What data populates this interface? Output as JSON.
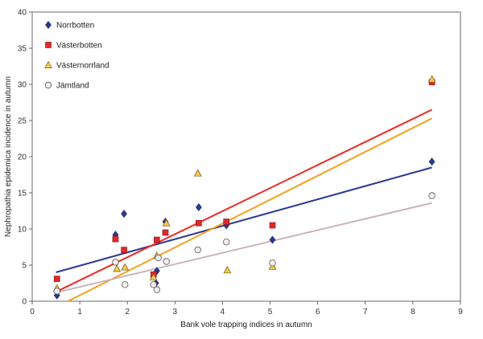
{
  "chart_data": {
    "type": "scatter",
    "xlabel": "Bank vole trapping indices in autumn",
    "ylabel": "Nephropathia epidemica incidence in autumn",
    "xlim": [
      0,
      9
    ],
    "ylim": [
      0,
      40
    ],
    "x_ticks": [
      0,
      1,
      2,
      3,
      4,
      5,
      6,
      7,
      8,
      9
    ],
    "y_ticks": [
      0,
      5,
      10,
      15,
      20,
      25,
      30,
      35,
      40
    ],
    "grid": false,
    "legend_position": "top-left",
    "series": [
      {
        "name": "Norrbotten",
        "marker": "diamond",
        "color": "#2b3990",
        "points": [
          {
            "x": 0.52,
            "y": 0.8
          },
          {
            "x": 1.75,
            "y": 9.2
          },
          {
            "x": 1.93,
            "y": 12.1
          },
          {
            "x": 2.6,
            "y": 2.5
          },
          {
            "x": 2.62,
            "y": 4.2
          },
          {
            "x": 2.8,
            "y": 11.0
          },
          {
            "x": 3.5,
            "y": 13.0
          },
          {
            "x": 4.08,
            "y": 10.5
          },
          {
            "x": 5.05,
            "y": 8.5
          },
          {
            "x": 8.4,
            "y": 19.3
          }
        ],
        "trend": {
          "x": [
            0.5,
            8.4
          ],
          "y": [
            4.0,
            18.5
          ],
          "color": "#2b3990"
        }
      },
      {
        "name": "Västerbotten",
        "marker": "square",
        "color": "#e0292b",
        "points": [
          {
            "x": 0.52,
            "y": 3.1
          },
          {
            "x": 1.75,
            "y": 8.6
          },
          {
            "x": 1.93,
            "y": 7.1
          },
          {
            "x": 2.55,
            "y": 3.7
          },
          {
            "x": 2.62,
            "y": 8.5
          },
          {
            "x": 2.8,
            "y": 9.5
          },
          {
            "x": 3.5,
            "y": 10.8
          },
          {
            "x": 4.08,
            "y": 11.0
          },
          {
            "x": 5.05,
            "y": 10.5
          },
          {
            "x": 8.4,
            "y": 30.3
          }
        ],
        "trend": {
          "x": [
            0.5,
            8.4
          ],
          "y": [
            1.3,
            26.5
          ],
          "color": "#ee2a24"
        }
      },
      {
        "name": "Västernorrland",
        "marker": "triangle",
        "color": "#f2c94c",
        "points": [
          {
            "x": 0.52,
            "y": 1.8
          },
          {
            "x": 1.78,
            "y": 4.5
          },
          {
            "x": 1.95,
            "y": 4.7
          },
          {
            "x": 2.55,
            "y": 3.3
          },
          {
            "x": 2.62,
            "y": 6.3
          },
          {
            "x": 2.82,
            "y": 10.8
          },
          {
            "x": 3.48,
            "y": 17.7
          },
          {
            "x": 4.1,
            "y": 4.3
          },
          {
            "x": 5.05,
            "y": 4.8
          },
          {
            "x": 8.4,
            "y": 30.7
          }
        ],
        "trend": {
          "x": [
            0.75,
            8.4
          ],
          "y": [
            0.0,
            25.3
          ],
          "color": "#f5a11c"
        }
      },
      {
        "name": "Jämtland",
        "marker": "circle",
        "color": "#f5eded",
        "points": [
          {
            "x": 0.52,
            "y": 1.4
          },
          {
            "x": 1.75,
            "y": 5.4
          },
          {
            "x": 1.95,
            "y": 2.3
          },
          {
            "x": 2.55,
            "y": 2.3
          },
          {
            "x": 2.62,
            "y": 1.6
          },
          {
            "x": 2.65,
            "y": 6.0
          },
          {
            "x": 2.82,
            "y": 5.5
          },
          {
            "x": 3.48,
            "y": 7.1
          },
          {
            "x": 4.08,
            "y": 8.2
          },
          {
            "x": 5.05,
            "y": 5.3
          },
          {
            "x": 8.4,
            "y": 14.6
          }
        ],
        "trend": {
          "x": [
            0.5,
            8.4
          ],
          "y": [
            1.2,
            13.6
          ],
          "color": "#c9b3ba"
        }
      }
    ]
  }
}
